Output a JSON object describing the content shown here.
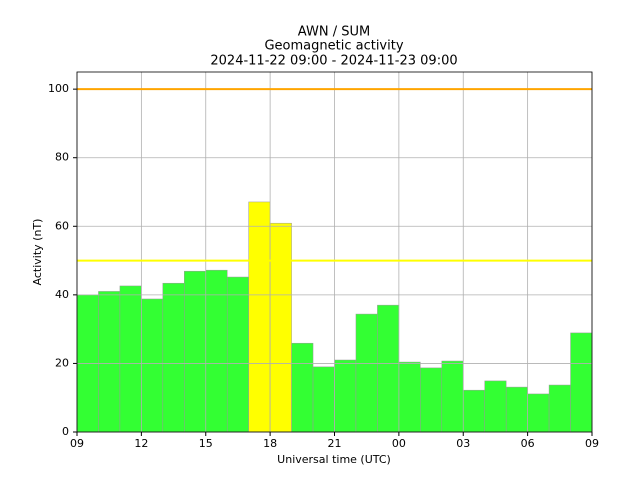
{
  "chart_data": {
    "type": "histogram",
    "title": [
      "AWN / SUM",
      "Geomagnetic activity",
      "2024-11-22 09:00 - 2024-11-23 09:00"
    ],
    "xlabel": "Universal time (UTC)",
    "ylabel": "Activity (nT)",
    "bins": [
      0,
      1,
      2,
      3,
      4,
      5,
      6,
      7,
      8,
      9,
      10,
      11,
      12,
      13,
      14,
      15,
      16,
      17,
      18,
      19,
      20,
      21,
      22,
      23,
      24
    ],
    "values": [
      40,
      41,
      42.6,
      38.8,
      43.4,
      46.9,
      47.2,
      45.2,
      67.1,
      60.9,
      25.9,
      19,
      21,
      34.4,
      37,
      20.4,
      18.7,
      20.7,
      12.2,
      14.9,
      13.1,
      11.1,
      13.7,
      28.9
    ],
    "colors": [
      "#33ff33",
      "#33ff33",
      "#33ff33",
      "#33ff33",
      "#33ff33",
      "#33ff33",
      "#33ff33",
      "#33ff33",
      "#ffff00",
      "#ffff00",
      "#33ff33",
      "#33ff33",
      "#33ff33",
      "#33ff33",
      "#33ff33",
      "#33ff33",
      "#33ff33",
      "#33ff33",
      "#33ff33",
      "#33ff33",
      "#33ff33",
      "#33ff33",
      "#33ff33",
      "#33ff33"
    ],
    "thresholds": [
      {
        "value": 100,
        "color": "#ffa500"
      },
      {
        "value": 50,
        "color": "#ffff00"
      }
    ],
    "xlim": [
      0,
      24
    ],
    "xticks": [
      {
        "value": 0,
        "label": "09"
      },
      {
        "value": 3,
        "label": "12"
      },
      {
        "value": 6,
        "label": "15"
      },
      {
        "value": 9,
        "label": "18"
      },
      {
        "value": 12,
        "label": "21"
      },
      {
        "value": 15,
        "label": "00"
      },
      {
        "value": 18,
        "label": "03"
      },
      {
        "value": 21,
        "label": "06"
      },
      {
        "value": 24,
        "label": "09"
      }
    ],
    "ylim": [
      0,
      105
    ],
    "yticks": [
      0,
      20,
      40,
      60,
      80,
      100
    ],
    "grid": true
  }
}
